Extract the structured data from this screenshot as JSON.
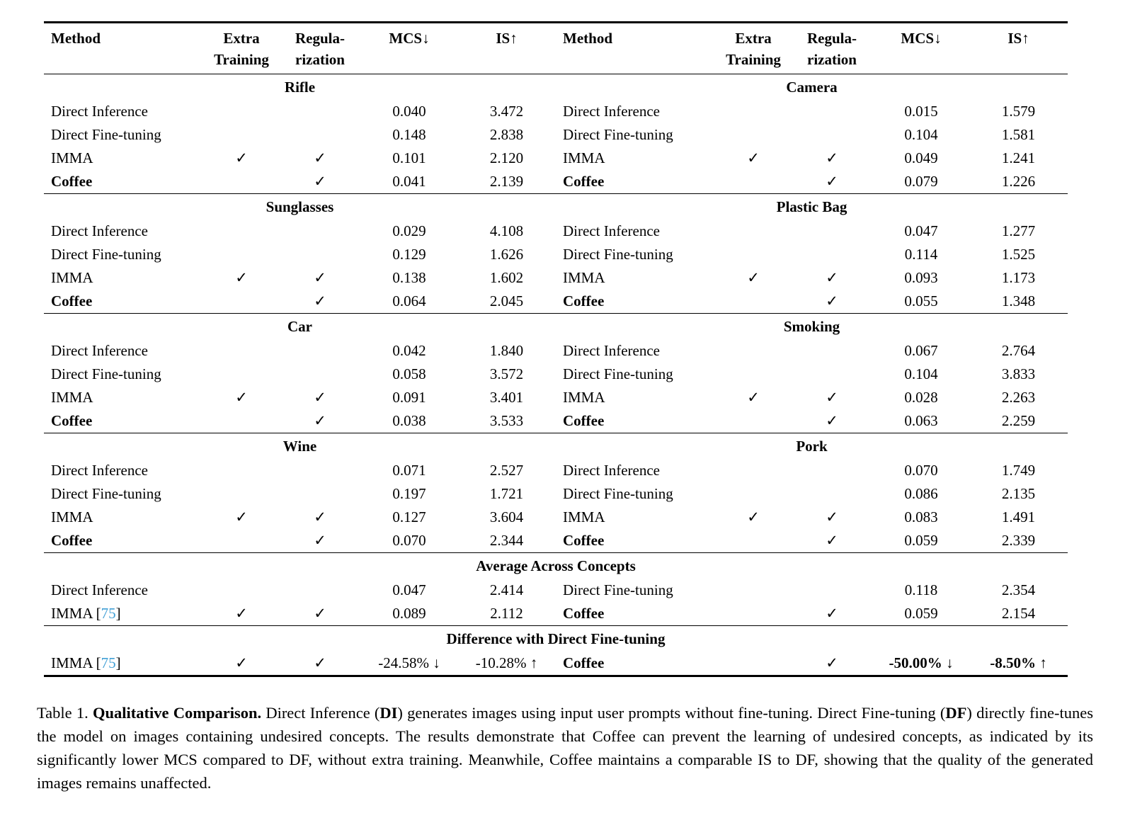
{
  "colors": {
    "citation": "#42A0D6",
    "text": "#000000",
    "rule": "#000000",
    "background": "#ffffff"
  },
  "table": {
    "header": {
      "method": "Method",
      "extra_line1": "Extra",
      "extra_line2": "Training",
      "reg_line1": "Regula-",
      "reg_line2": "rization",
      "mcs": "MCS↓",
      "is": "IS↑"
    },
    "concept_sections": [
      {
        "left": {
          "title": "Rifle",
          "rows": [
            {
              "method": "Direct Inference",
              "extra": "",
              "reg": "",
              "mcs": "0.040",
              "is": "3.472"
            },
            {
              "method": "Direct Fine-tuning",
              "extra": "",
              "reg": "",
              "mcs": "0.148",
              "is": "2.838"
            },
            {
              "method": "IMMA",
              "extra": "✓",
              "reg": "✓",
              "mcs": "0.101",
              "is": "2.120"
            },
            {
              "method": "Coffee",
              "bold": true,
              "extra": "",
              "reg": "✓",
              "mcs": "0.041",
              "is": "2.139"
            }
          ]
        },
        "right": {
          "title": "Camera",
          "rows": [
            {
              "method": "Direct Inference",
              "extra": "",
              "reg": "",
              "mcs": "0.015",
              "is": "1.579"
            },
            {
              "method": "Direct Fine-tuning",
              "extra": "",
              "reg": "",
              "mcs": "0.104",
              "is": "1.581"
            },
            {
              "method": "IMMA",
              "extra": "✓",
              "reg": "✓",
              "mcs": "0.049",
              "is": "1.241"
            },
            {
              "method": "Coffee",
              "bold": true,
              "extra": "",
              "reg": "✓",
              "mcs": "0.079",
              "is": "1.226"
            }
          ]
        }
      },
      {
        "left": {
          "title": "Sunglasses",
          "rows": [
            {
              "method": "Direct Inference",
              "extra": "",
              "reg": "",
              "mcs": "0.029",
              "is": "4.108"
            },
            {
              "method": "Direct Fine-tuning",
              "extra": "",
              "reg": "",
              "mcs": "0.129",
              "is": "1.626"
            },
            {
              "method": "IMMA",
              "extra": "✓",
              "reg": "✓",
              "mcs": "0.138",
              "is": "1.602"
            },
            {
              "method": "Coffee",
              "bold": true,
              "extra": "",
              "reg": "✓",
              "mcs": "0.064",
              "is": "2.045"
            }
          ]
        },
        "right": {
          "title": "Plastic Bag",
          "rows": [
            {
              "method": "Direct Inference",
              "extra": "",
              "reg": "",
              "mcs": "0.047",
              "is": "1.277"
            },
            {
              "method": "Direct Fine-tuning",
              "extra": "",
              "reg": "",
              "mcs": "0.114",
              "is": "1.525"
            },
            {
              "method": "IMMA",
              "extra": "✓",
              "reg": "✓",
              "mcs": "0.093",
              "is": "1.173"
            },
            {
              "method": "Coffee",
              "bold": true,
              "extra": "",
              "reg": "✓",
              "mcs": "0.055",
              "is": "1.348"
            }
          ]
        }
      },
      {
        "left": {
          "title": "Car",
          "rows": [
            {
              "method": "Direct Inference",
              "extra": "",
              "reg": "",
              "mcs": "0.042",
              "is": "1.840"
            },
            {
              "method": "Direct Fine-tuning",
              "extra": "",
              "reg": "",
              "mcs": "0.058",
              "is": "3.572"
            },
            {
              "method": "IMMA",
              "extra": "✓",
              "reg": "✓",
              "mcs": "0.091",
              "is": "3.401"
            },
            {
              "method": "Coffee",
              "bold": true,
              "extra": "",
              "reg": "✓",
              "mcs": "0.038",
              "is": "3.533"
            }
          ]
        },
        "right": {
          "title": "Smoking",
          "rows": [
            {
              "method": "Direct Inference",
              "extra": "",
              "reg": "",
              "mcs": "0.067",
              "is": "2.764"
            },
            {
              "method": "Direct Fine-tuning",
              "extra": "",
              "reg": "",
              "mcs": "0.104",
              "is": "3.833"
            },
            {
              "method": "IMMA",
              "extra": "✓",
              "reg": "✓",
              "mcs": "0.028",
              "is": "2.263"
            },
            {
              "method": "Coffee",
              "bold": true,
              "extra": "",
              "reg": "✓",
              "mcs": "0.063",
              "is": "2.259"
            }
          ]
        }
      },
      {
        "left": {
          "title": "Wine",
          "rows": [
            {
              "method": "Direct Inference",
              "extra": "",
              "reg": "",
              "mcs": "0.071",
              "is": "2.527"
            },
            {
              "method": "Direct Fine-tuning",
              "extra": "",
              "reg": "",
              "mcs": "0.197",
              "is": "1.721"
            },
            {
              "method": "IMMA",
              "extra": "✓",
              "reg": "✓",
              "mcs": "0.127",
              "is": "3.604"
            },
            {
              "method": "Coffee",
              "bold": true,
              "extra": "",
              "reg": "✓",
              "mcs": "0.070",
              "is": "2.344"
            }
          ]
        },
        "right": {
          "title": "Pork",
          "rows": [
            {
              "method": "Direct Inference",
              "extra": "",
              "reg": "",
              "mcs": "0.070",
              "is": "1.749"
            },
            {
              "method": "Direct Fine-tuning",
              "extra": "",
              "reg": "",
              "mcs": "0.086",
              "is": "2.135"
            },
            {
              "method": "IMMA",
              "extra": "✓",
              "reg": "✓",
              "mcs": "0.083",
              "is": "1.491"
            },
            {
              "method": "Coffee",
              "bold": true,
              "extra": "",
              "reg": "✓",
              "mcs": "0.059",
              "is": "2.339"
            }
          ]
        }
      }
    ],
    "average_section": {
      "title": "Average Across Concepts",
      "rows": [
        {
          "left": {
            "method": "Direct Inference",
            "extra": "",
            "reg": "",
            "mcs": "0.047",
            "is": "2.414"
          },
          "right": {
            "method": "Direct Fine-tuning",
            "extra": "",
            "reg": "",
            "mcs": "0.118",
            "is": "2.354"
          }
        },
        {
          "left": {
            "method": "IMMA",
            "cite": "75",
            "extra": "✓",
            "reg": "✓",
            "mcs": "0.089",
            "is": "2.112"
          },
          "right": {
            "method": "Coffee",
            "bold": true,
            "extra": "",
            "reg": "✓",
            "mcs": "0.059",
            "is": "2.154"
          }
        }
      ]
    },
    "difference_section": {
      "title": "Difference with Direct Fine-tuning",
      "rows": [
        {
          "left": {
            "method": "IMMA",
            "cite": "75",
            "extra": "✓",
            "reg": "✓",
            "mcs": "-24.58% ↓",
            "is": "-10.28% ↑"
          },
          "right": {
            "method": "Coffee",
            "bold": true,
            "extra": "",
            "reg": "✓",
            "mcs": "-50.00% ↓",
            "is": "-8.50% ↑",
            "bold_values": true
          }
        }
      ]
    }
  },
  "caption": {
    "segments": [
      {
        "text": "Table 1.  ",
        "bold": false
      },
      {
        "text": "Qualitative Comparison.",
        "bold": true
      },
      {
        "text": "  Direct Inference (",
        "bold": false
      },
      {
        "text": "DI",
        "bold": true
      },
      {
        "text": ") generates images using input user prompts without fine-tuning.  Direct Fine-tuning (",
        "bold": false
      },
      {
        "text": "DF",
        "bold": true
      },
      {
        "text": ") directly fine-tunes the model on images containing undesired concepts.  The results demonstrate that Coffee can prevent the learning of undesired concepts, as indicated by its significantly lower MCS compared to DF, without extra training.  Meanwhile, Coffee maintains a comparable IS to DF, showing that the quality of the generated images remains unaffected.",
        "bold": false
      }
    ]
  }
}
